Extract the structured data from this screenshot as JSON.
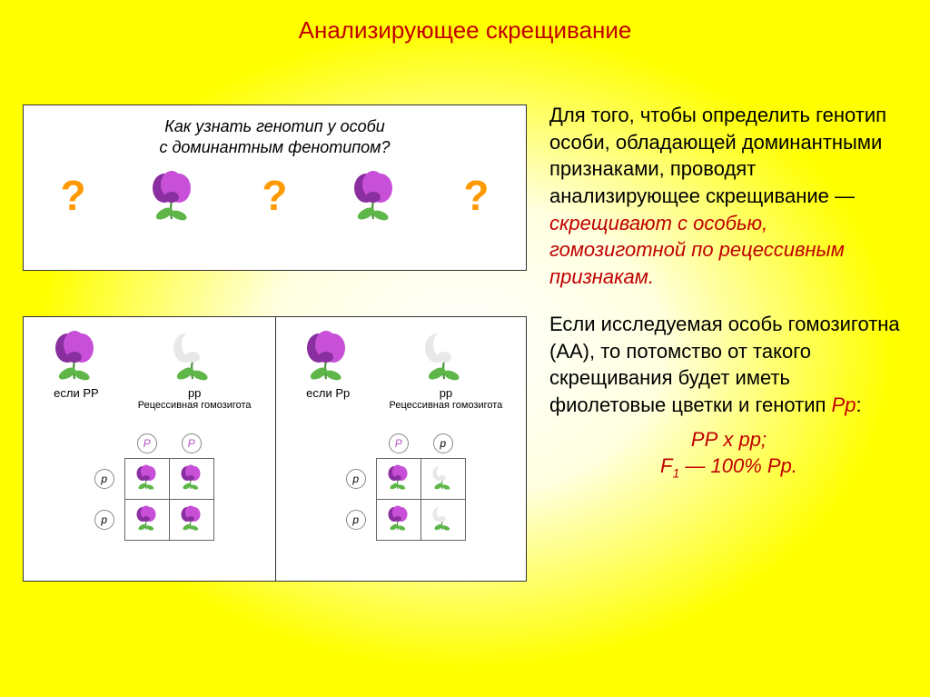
{
  "title": "Анализирующее скрещивание",
  "box1": {
    "question_l1": "Как узнать генотип у особи",
    "question_l2": "с доминантным фенотипом?",
    "qmark": "?"
  },
  "flowers": {
    "purple_color": "#c850d8",
    "purple_dark": "#8a2fa0",
    "white_color": "#ffffff",
    "white_shade": "#e8e8e8",
    "leaf_color": "#5eb648",
    "leaf_dark": "#3e8a2f"
  },
  "box2": {
    "left": {
      "p1_label": "если РР",
      "p1_type": "purple",
      "p2_label_top": "рр",
      "p2_label_sub": "Рецессивная\nгомозигота",
      "p2_type": "white",
      "col_allele": "P",
      "row_allele": "p",
      "cells": [
        "purple",
        "purple",
        "purple",
        "purple"
      ]
    },
    "right": {
      "p1_label": "если Рр",
      "p1_type": "purple",
      "p2_label_top": "рр",
      "p2_label_sub": "Рецессивная\nгомозигота",
      "p2_type": "white",
      "col_alleles": [
        "P",
        "p"
      ],
      "row_allele": "p",
      "cells": [
        "purple",
        "white",
        "purple",
        "white"
      ]
    }
  },
  "right_text": {
    "para1_a": "Для того, чтобы определить генотип особи, обладающей доминантными признаками, проводят анализирующее скрещивание — ",
    "para1_em": "скрещивают с особью, гомозиготной по рецессивным признакам.",
    "para2_a": "Если исследуемая особь гомозиготна (АА), то потомство от такого скрещивания будет иметь фиолетовые цветки и генотип ",
    "para2_pp": "Рр",
    "para2_b": ":",
    "formula1": "РР х рр;",
    "formula2_pre": "F",
    "formula2_sub": "1",
    "formula2_post": " — 100% Рр."
  }
}
